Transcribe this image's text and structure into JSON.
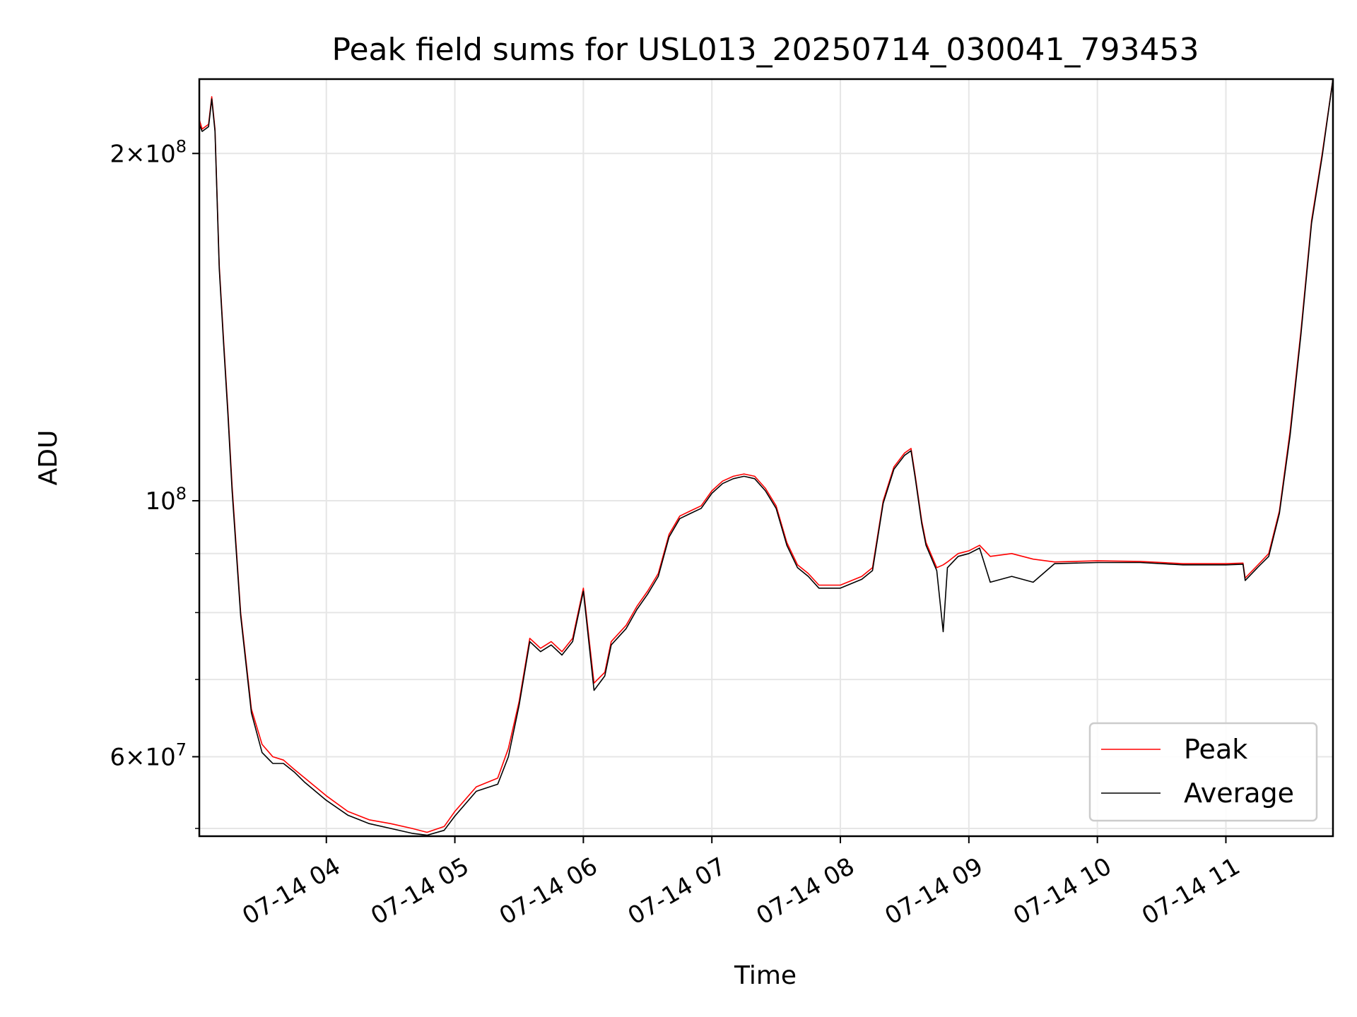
{
  "chart_data": {
    "type": "line",
    "title": "Peak field sums for USL013_20250714_030041_793453",
    "xlabel": "Time",
    "ylabel": "ADU",
    "y_scale": "log",
    "grid": true,
    "legend": "bottom-right",
    "xlim": [
      "2025-07-14 03:00:41",
      "2025-07-14 11:50:00"
    ],
    "ylim": [
      51200000,
      232000000
    ],
    "x_ticks": [
      {
        "t": "2025-07-14 04:00",
        "label": "07-14 04"
      },
      {
        "t": "2025-07-14 05:00",
        "label": "07-14 05"
      },
      {
        "t": "2025-07-14 06:00",
        "label": "07-14 06"
      },
      {
        "t": "2025-07-14 07:00",
        "label": "07-14 07"
      },
      {
        "t": "2025-07-14 08:00",
        "label": "07-14 08"
      },
      {
        "t": "2025-07-14 09:00",
        "label": "07-14 09"
      },
      {
        "t": "2025-07-14 10:00",
        "label": "07-14 10"
      },
      {
        "t": "2025-07-14 11:00",
        "label": "07-14 11"
      }
    ],
    "y_ticks_major": [
      {
        "v": 60000000,
        "base": "6×10",
        "exp": "7"
      },
      {
        "v": 100000000,
        "base": "10",
        "exp": "8"
      },
      {
        "v": 200000000,
        "base": "2×10",
        "exp": "8"
      }
    ],
    "y_ticks_minor": [
      52000000,
      70000000,
      80000000,
      90000000
    ],
    "series": [
      {
        "name": "Peak",
        "color": "#ff0000",
        "x": [
          "2025-07-14 03:00:41",
          "2025-07-14 03:02:00",
          "2025-07-14 03:05:00",
          "2025-07-14 03:06:30",
          "2025-07-14 03:08:00",
          "2025-07-14 03:10:00",
          "2025-07-14 03:12:00",
          "2025-07-14 03:14:00",
          "2025-07-14 03:16:00",
          "2025-07-14 03:20:00",
          "2025-07-14 03:25:00",
          "2025-07-14 03:30:00",
          "2025-07-14 03:35:00",
          "2025-07-14 03:40:00",
          "2025-07-14 03:45:00",
          "2025-07-14 03:50:00",
          "2025-07-14 04:00:00",
          "2025-07-14 04:10:00",
          "2025-07-14 04:20:00",
          "2025-07-14 04:30:00",
          "2025-07-14 04:40:00",
          "2025-07-14 04:47:00",
          "2025-07-14 04:55:00",
          "2025-07-14 05:00:00",
          "2025-07-14 05:10:00",
          "2025-07-14 05:20:00",
          "2025-07-14 05:25:00",
          "2025-07-14 05:30:00",
          "2025-07-14 05:35:00",
          "2025-07-14 05:40:00",
          "2025-07-14 05:45:00",
          "2025-07-14 05:50:00",
          "2025-07-14 05:55:00",
          "2025-07-14 06:00:00",
          "2025-07-14 06:05:00",
          "2025-07-14 06:10:00",
          "2025-07-14 06:13:00",
          "2025-07-14 06:20:00",
          "2025-07-14 06:25:00",
          "2025-07-14 06:30:00",
          "2025-07-14 06:35:00",
          "2025-07-14 06:40:00",
          "2025-07-14 06:45:00",
          "2025-07-14 06:50:00",
          "2025-07-14 06:55:00",
          "2025-07-14 07:00:00",
          "2025-07-14 07:05:00",
          "2025-07-14 07:10:00",
          "2025-07-14 07:15:00",
          "2025-07-14 07:20:00",
          "2025-07-14 07:25:00",
          "2025-07-14 07:30:00",
          "2025-07-14 07:35:00",
          "2025-07-14 07:40:00",
          "2025-07-14 07:45:00",
          "2025-07-14 07:50:00",
          "2025-07-14 08:00:00",
          "2025-07-14 08:10:00",
          "2025-07-14 08:15:00",
          "2025-07-14 08:20:00",
          "2025-07-14 08:25:00",
          "2025-07-14 08:30:00",
          "2025-07-14 08:33:00",
          "2025-07-14 08:35:00",
          "2025-07-14 08:38:00",
          "2025-07-14 08:40:00",
          "2025-07-14 08:45:00",
          "2025-07-14 08:48:00",
          "2025-07-14 08:50:00",
          "2025-07-14 08:55:00",
          "2025-07-14 09:00:00",
          "2025-07-14 09:05:00",
          "2025-07-14 09:10:00",
          "2025-07-14 09:20:00",
          "2025-07-14 09:30:00",
          "2025-07-14 09:40:00",
          "2025-07-14 10:00:00",
          "2025-07-14 10:20:00",
          "2025-07-14 10:40:00",
          "2025-07-14 11:00:00",
          "2025-07-14 11:08:00",
          "2025-07-14 11:09:00",
          "2025-07-14 11:15:00",
          "2025-07-14 11:20:00",
          "2025-07-14 11:25:00",
          "2025-07-14 11:30:00",
          "2025-07-14 11:35:00",
          "2025-07-14 11:40:00",
          "2025-07-14 11:45:00",
          "2025-07-14 11:50:00"
        ],
        "y": [
          214000000,
          210000000,
          212000000,
          224000000,
          210000000,
          160000000,
          138000000,
          120000000,
          103000000,
          80000000,
          66000000,
          61500000,
          60000000,
          59600000,
          58500000,
          57500000,
          55500000,
          53800000,
          52900000,
          52500000,
          52000000,
          51600000,
          52200000,
          53800000,
          56500000,
          57500000,
          61000000,
          67000000,
          76000000,
          74500000,
          75500000,
          74000000,
          76000000,
          84000000,
          69500000,
          71000000,
          75500000,
          78000000,
          81000000,
          83500000,
          86500000,
          93500000,
          97000000,
          98000000,
          99000000,
          102000000,
          104000000,
          105000000,
          105500000,
          105000000,
          102500000,
          99000000,
          92000000,
          88000000,
          86500000,
          84500000,
          84500000,
          86000000,
          87500000,
          100000000,
          107000000,
          110000000,
          111000000,
          105000000,
          96000000,
          92000000,
          87500000,
          88000000,
          88500000,
          90000000,
          90500000,
          91500000,
          89500000,
          90000000,
          89000000,
          88500000,
          88700000,
          88600000,
          88200000,
          88200000,
          88300000,
          85700000,
          88000000,
          90000000,
          98000000,
          115000000,
          140000000,
          175000000,
          200000000,
          232000000
        ]
      },
      {
        "name": "Average",
        "color": "#000000",
        "x": [
          "2025-07-14 03:00:41",
          "2025-07-14 03:02:00",
          "2025-07-14 03:05:00",
          "2025-07-14 03:06:30",
          "2025-07-14 03:08:00",
          "2025-07-14 03:10:00",
          "2025-07-14 03:12:00",
          "2025-07-14 03:14:00",
          "2025-07-14 03:16:00",
          "2025-07-14 03:20:00",
          "2025-07-14 03:25:00",
          "2025-07-14 03:30:00",
          "2025-07-14 03:35:00",
          "2025-07-14 03:40:00",
          "2025-07-14 03:45:00",
          "2025-07-14 03:50:00",
          "2025-07-14 04:00:00",
          "2025-07-14 04:10:00",
          "2025-07-14 04:20:00",
          "2025-07-14 04:30:00",
          "2025-07-14 04:40:00",
          "2025-07-14 04:47:00",
          "2025-07-14 04:55:00",
          "2025-07-14 05:00:00",
          "2025-07-14 05:10:00",
          "2025-07-14 05:20:00",
          "2025-07-14 05:25:00",
          "2025-07-14 05:30:00",
          "2025-07-14 05:35:00",
          "2025-07-14 05:40:00",
          "2025-07-14 05:45:00",
          "2025-07-14 05:50:00",
          "2025-07-14 05:55:00",
          "2025-07-14 06:00:00",
          "2025-07-14 06:05:00",
          "2025-07-14 06:10:00",
          "2025-07-14 06:13:00",
          "2025-07-14 06:20:00",
          "2025-07-14 06:25:00",
          "2025-07-14 06:30:00",
          "2025-07-14 06:35:00",
          "2025-07-14 06:40:00",
          "2025-07-14 06:45:00",
          "2025-07-14 06:50:00",
          "2025-07-14 06:55:00",
          "2025-07-14 07:00:00",
          "2025-07-14 07:05:00",
          "2025-07-14 07:10:00",
          "2025-07-14 07:15:00",
          "2025-07-14 07:20:00",
          "2025-07-14 07:25:00",
          "2025-07-14 07:30:00",
          "2025-07-14 07:35:00",
          "2025-07-14 07:40:00",
          "2025-07-14 07:45:00",
          "2025-07-14 07:50:00",
          "2025-07-14 08:00:00",
          "2025-07-14 08:10:00",
          "2025-07-14 08:15:00",
          "2025-07-14 08:20:00",
          "2025-07-14 08:25:00",
          "2025-07-14 08:30:00",
          "2025-07-14 08:33:00",
          "2025-07-14 08:35:00",
          "2025-07-14 08:38:00",
          "2025-07-14 08:40:00",
          "2025-07-14 08:45:00",
          "2025-07-14 08:48:00",
          "2025-07-14 08:50:00",
          "2025-07-14 08:55:00",
          "2025-07-14 09:00:00",
          "2025-07-14 09:05:00",
          "2025-07-14 09:10:00",
          "2025-07-14 09:20:00",
          "2025-07-14 09:30:00",
          "2025-07-14 09:40:00",
          "2025-07-14 10:00:00",
          "2025-07-14 10:20:00",
          "2025-07-14 10:40:00",
          "2025-07-14 11:00:00",
          "2025-07-14 11:08:00",
          "2025-07-14 11:09:00",
          "2025-07-14 11:15:00",
          "2025-07-14 11:20:00",
          "2025-07-14 11:25:00",
          "2025-07-14 11:30:00",
          "2025-07-14 11:35:00",
          "2025-07-14 11:40:00",
          "2025-07-14 11:45:00",
          "2025-07-14 11:50:00"
        ],
        "y": [
          212000000,
          209000000,
          211000000,
          223000000,
          209000000,
          159000000,
          137000000,
          119000000,
          102000000,
          79500000,
          65500000,
          60500000,
          59200000,
          59200000,
          58200000,
          57000000,
          55000000,
          53400000,
          52500000,
          52000000,
          51500000,
          51300000,
          51800000,
          53300000,
          56000000,
          56800000,
          60000000,
          66500000,
          75500000,
          74000000,
          75000000,
          73500000,
          75500000,
          83500000,
          68500000,
          70500000,
          75000000,
          77500000,
          80500000,
          83000000,
          86000000,
          93000000,
          96500000,
          97500000,
          98500000,
          101500000,
          103500000,
          104500000,
          105000000,
          104500000,
          102000000,
          98500000,
          91500000,
          87500000,
          86000000,
          84000000,
          84000000,
          85500000,
          87000000,
          99500000,
          106500000,
          109500000,
          110500000,
          104500000,
          95500000,
          91500000,
          87000000,
          77000000,
          87500000,
          89500000,
          90000000,
          91000000,
          85000000,
          86000000,
          85000000,
          88200000,
          88400000,
          88400000,
          88000000,
          88000000,
          88100000,
          85300000,
          87600000,
          89500000,
          97500000,
          114000000,
          139000000,
          174000000,
          199000000,
          232000000
        ]
      }
    ]
  }
}
